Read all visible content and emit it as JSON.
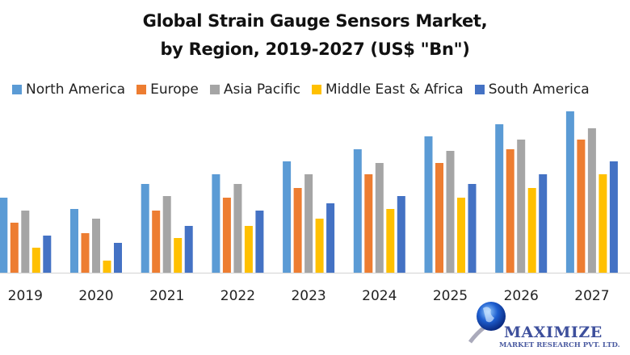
{
  "chart_data": {
    "type": "bar",
    "title": "Global Strain Gauge Sensors Market,",
    "subtitle": "by Region, 2019-2027 (US$ \"Bn\")",
    "xlabel": "",
    "ylabel": "",
    "ylim": [
      0,
      10.5
    ],
    "grid": false,
    "legend_placement": "top",
    "categories": [
      "2019",
      "2020",
      "2021",
      "2022",
      "2023",
      "2024",
      "2025",
      "2026",
      "2027"
    ],
    "series": [
      {
        "name": "North America",
        "color": "#5b9bd5",
        "values": [
          4.65,
          3.95,
          5.5,
          6.1,
          6.9,
          7.65,
          8.45,
          9.2,
          10.0
        ]
      },
      {
        "name": "Europe",
        "color": "#ed7d31",
        "values": [
          3.1,
          2.45,
          3.85,
          4.65,
          5.25,
          6.1,
          6.8,
          7.65,
          8.25
        ]
      },
      {
        "name": "Asia Pacific",
        "color": "#a5a5a5",
        "values": [
          3.85,
          3.35,
          4.75,
          5.5,
          6.1,
          6.8,
          7.55,
          8.25,
          8.95
        ]
      },
      {
        "name": "Middle East & Africa",
        "color": "#ffc000",
        "values": [
          1.55,
          0.75,
          2.15,
          2.9,
          3.35,
          3.95,
          4.65,
          5.25,
          6.1
        ]
      },
      {
        "name": "South America",
        "color": "#4472c4",
        "values": [
          2.3,
          1.85,
          2.9,
          3.85,
          4.3,
          4.75,
          5.5,
          6.1,
          6.9
        ]
      }
    ]
  },
  "logo": {
    "name": "MAXIMIZE",
    "tagline": "MARKET RESEARCH PVT. LTD."
  }
}
